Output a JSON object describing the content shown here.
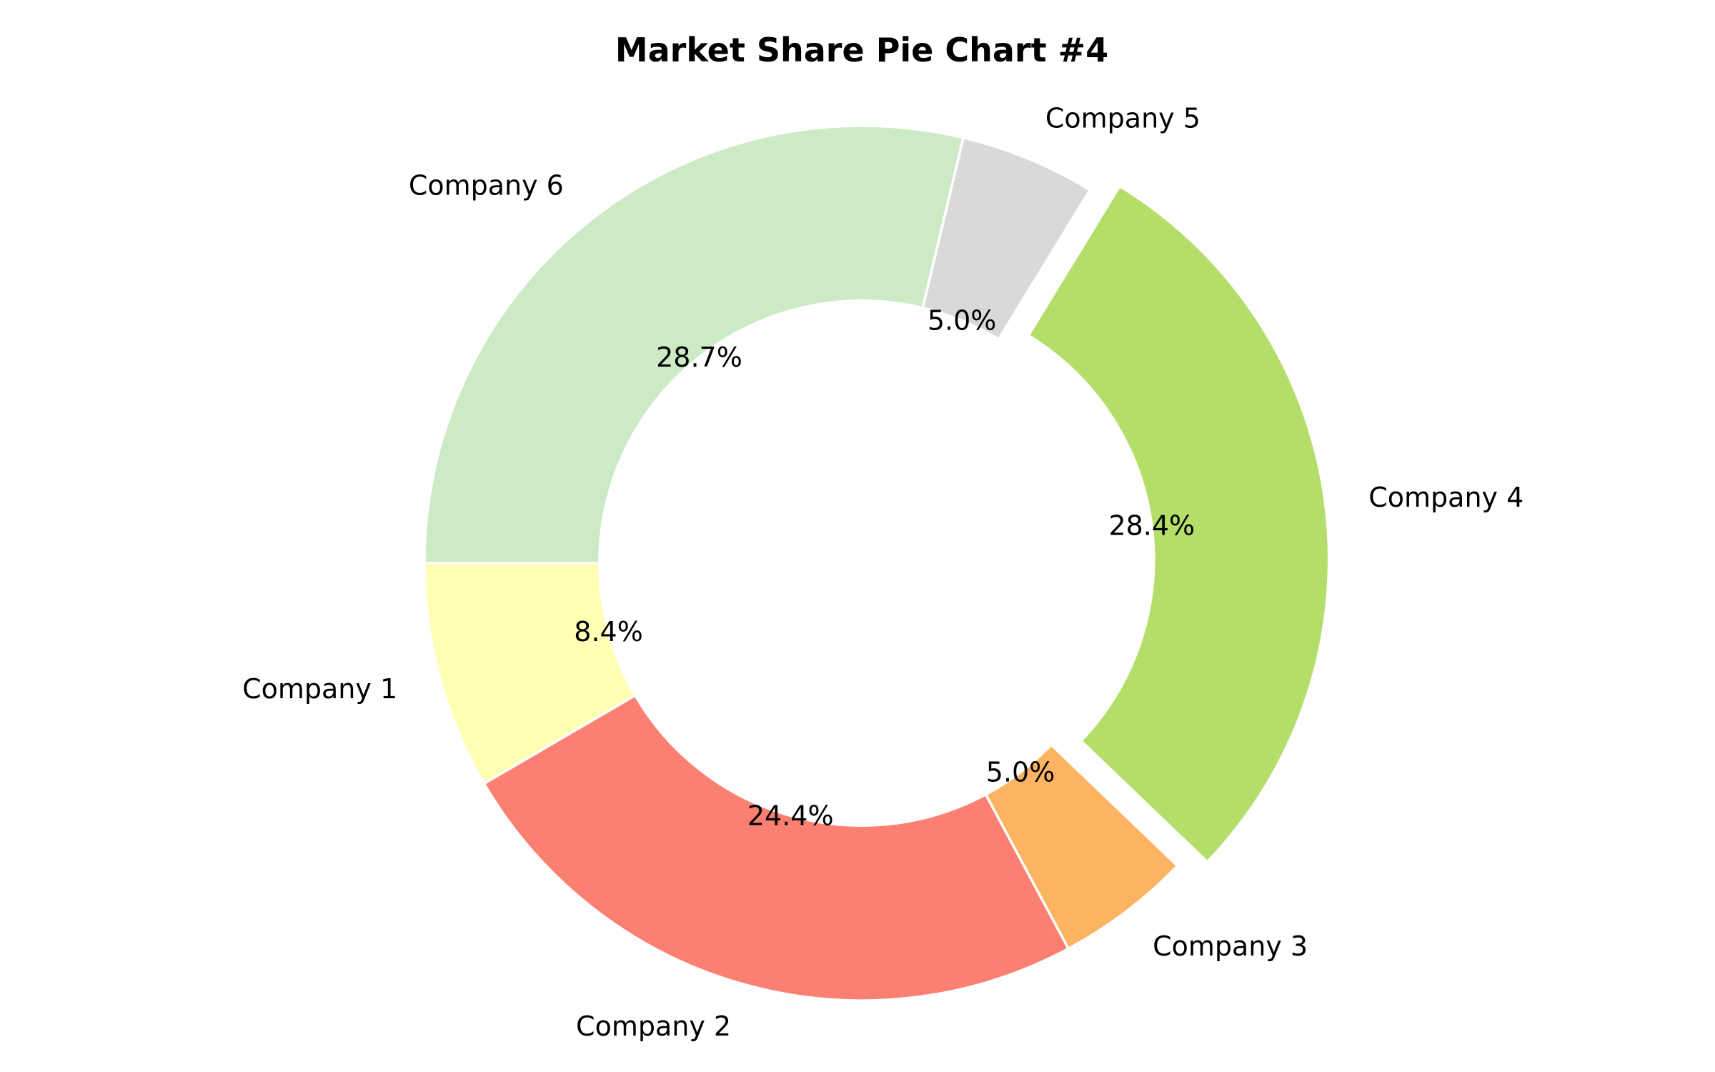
{
  "chart_data": {
    "type": "pie",
    "variant": "donut",
    "title": "Market Share Pie Chart #4",
    "start_angle_deg": 180,
    "direction": "counterclockwise",
    "hole_fraction": 0.6,
    "slices": [
      {
        "label": "Company 1",
        "value": 8.4,
        "pct_label": "8.4%",
        "color": "#ffffb3",
        "exploded": false
      },
      {
        "label": "Company 2",
        "value": 24.4,
        "pct_label": "24.4%",
        "color": "#fb8072",
        "exploded": false
      },
      {
        "label": "Company 3",
        "value": 5.0,
        "pct_label": "5.0%",
        "color": "#fdb462",
        "exploded": false
      },
      {
        "label": "Company 4",
        "value": 28.4,
        "pct_label": "28.4%",
        "color": "#b3de69",
        "exploded": true
      },
      {
        "label": "Company 5",
        "value": 5.0,
        "pct_label": "5.0%",
        "color": "#d9d9d9",
        "exploded": false
      },
      {
        "label": "Company 6",
        "value": 28.7,
        "pct_label": "28.7%",
        "color": "#ccebc5",
        "exploded": false
      }
    ]
  }
}
